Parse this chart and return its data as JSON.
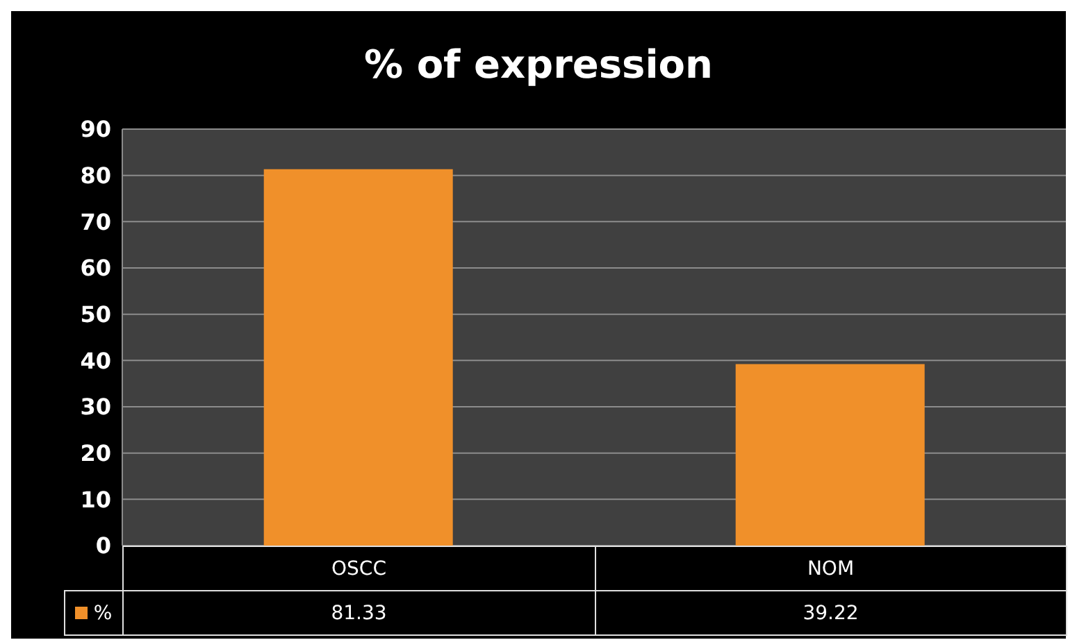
{
  "chart_data": {
    "type": "bar",
    "title": "% of expression",
    "categories": [
      "OSCC",
      "NOM"
    ],
    "series": [
      {
        "name": "%",
        "color": "#f0902a",
        "values": [
          81.33,
          39.22
        ]
      }
    ],
    "ylim": [
      0,
      90
    ],
    "yticks": [
      0,
      10,
      20,
      30,
      40,
      50,
      60,
      70,
      80,
      90
    ],
    "grid": "y",
    "data_labels": true,
    "legend": "bottom left"
  }
}
